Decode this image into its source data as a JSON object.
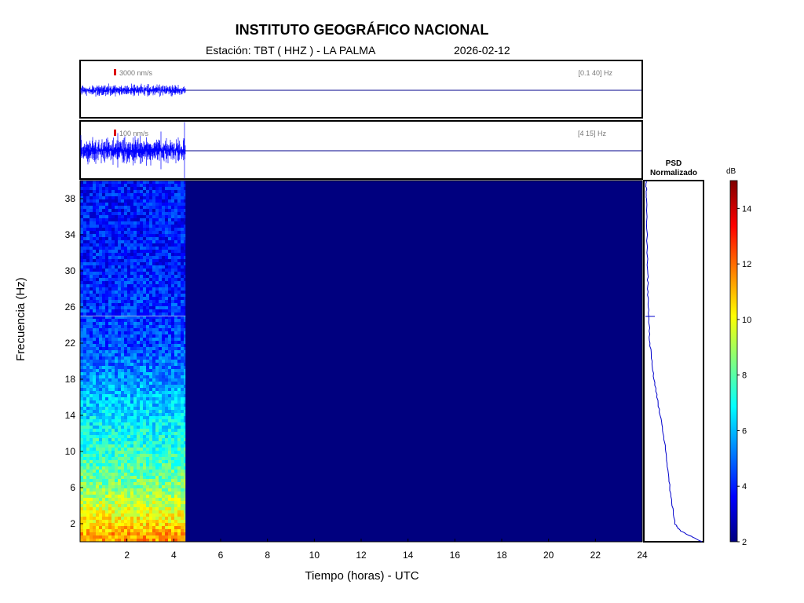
{
  "header": {
    "title": "INSTITUTO GEOGRÁFICO NACIONAL",
    "station_label": "Estación:  TBT ( HHZ ) - LA PALMA",
    "date": "2026-02-12"
  },
  "traces": [
    {
      "scale_label": "3000 nm/s",
      "band_label": "[0.1 40] Hz"
    },
    {
      "scale_label": "100 nm/s",
      "band_label": "[4 15] Hz"
    }
  ],
  "psd": {
    "title_line1": "PSD",
    "title_line2": "Normalizado"
  },
  "colorbar": {
    "unit": "dB",
    "min": 2,
    "max": 15,
    "ticks": [
      2,
      4,
      6,
      8,
      10,
      12,
      14
    ]
  },
  "colors": {
    "trace": "#0000ff",
    "background_spectrum": "#00007f",
    "scale_bar": "#dd0000"
  },
  "chart_data": {
    "type": "heatmap",
    "xlabel": "Tiempo (horas) - UTC",
    "ylabel": "Frecuencia  (Hz)",
    "xlim": [
      0,
      24
    ],
    "ylim": [
      0,
      40
    ],
    "xticks": [
      2,
      4,
      6,
      8,
      10,
      12,
      14,
      16,
      18,
      20,
      22,
      24
    ],
    "yticks": [
      2,
      6,
      10,
      14,
      18,
      22,
      26,
      30,
      34,
      38
    ],
    "data_end_hour": 4.5,
    "spectrum_profile_db": [
      {
        "freq": 0.5,
        "db": 11.5
      },
      {
        "freq": 2,
        "db": 10.5
      },
      {
        "freq": 6,
        "db": 8.5
      },
      {
        "freq": 10,
        "db": 7.5
      },
      {
        "freq": 14,
        "db": 6.5
      },
      {
        "freq": 18,
        "db": 5.5
      },
      {
        "freq": 22,
        "db": 4.5
      },
      {
        "freq": 30,
        "db": 4.0
      },
      {
        "freq": 40,
        "db": 3.8
      }
    ],
    "psd_profile": [
      {
        "freq": 0,
        "value": 1.0
      },
      {
        "freq": 1.2,
        "value": 0.62
      },
      {
        "freq": 2,
        "value": 0.52
      },
      {
        "freq": 6,
        "value": 0.43
      },
      {
        "freq": 10,
        "value": 0.36
      },
      {
        "freq": 14,
        "value": 0.26
      },
      {
        "freq": 18,
        "value": 0.15
      },
      {
        "freq": 22,
        "value": 0.08
      },
      {
        "freq": 26,
        "value": 0.05
      },
      {
        "freq": 30,
        "value": 0.04
      },
      {
        "freq": 38,
        "value": 0.02
      },
      {
        "freq": 40,
        "value": 0.01
      }
    ]
  }
}
